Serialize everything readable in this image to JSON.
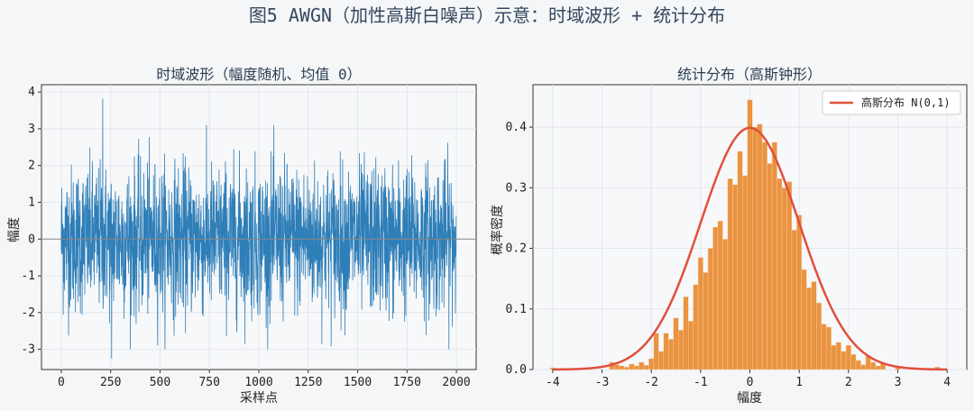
{
  "figure_title": "图5  AWGN（加性高斯白噪声）示意：时域波形 + 统计分布",
  "chart_data": [
    {
      "type": "line",
      "title": "时域波形（幅度随机、均值 0）",
      "xlabel": "采样点",
      "ylabel": "幅度",
      "xlim": [
        -100,
        2100
      ],
      "ylim": [
        -3.55,
        4.2
      ],
      "xticks": [
        0,
        250,
        500,
        750,
        1000,
        1250,
        1500,
        1750,
        2000
      ],
      "yticks": [
        -3,
        -2,
        -1,
        0,
        1,
        2,
        3,
        4
      ],
      "n_samples": 2000,
      "noise_mean": 0,
      "noise_std": 1,
      "notable_points": [
        {
          "x": 210,
          "y": 3.82
        },
        {
          "x": 255,
          "y": -3.25
        }
      ],
      "reference_line_y": 0,
      "line_color": "#2e7eb8",
      "reference_color": "#888888",
      "grid": true
    },
    {
      "type": "bar",
      "title": "统计分布（高斯钟形）",
      "xlabel": "幅度",
      "ylabel": "概率密度",
      "xlim": [
        -4.4,
        4.4
      ],
      "ylim": [
        0,
        0.47
      ],
      "xticks": [
        -4,
        -3,
        -2,
        -1,
        0,
        1,
        2,
        3,
        4
      ],
      "yticks": [
        0.0,
        0.1,
        0.2,
        0.3,
        0.4
      ],
      "bin_width": 0.1,
      "histogram": [
        {
          "x": -4.0,
          "y": 0.003
        },
        {
          "x": -2.8,
          "y": 0.012
        },
        {
          "x": -2.7,
          "y": 0.008
        },
        {
          "x": -2.6,
          "y": 0.006
        },
        {
          "x": -2.5,
          "y": 0.004
        },
        {
          "x": -2.4,
          "y": 0.009
        },
        {
          "x": -2.3,
          "y": 0.006
        },
        {
          "x": -2.2,
          "y": 0.012
        },
        {
          "x": -2.1,
          "y": 0.007
        },
        {
          "x": -2.0,
          "y": 0.018
        },
        {
          "x": -1.9,
          "y": 0.06
        },
        {
          "x": -1.8,
          "y": 0.03
        },
        {
          "x": -1.7,
          "y": 0.06
        },
        {
          "x": -1.6,
          "y": 0.05
        },
        {
          "x": -1.5,
          "y": 0.085
        },
        {
          "x": -1.4,
          "y": 0.065
        },
        {
          "x": -1.3,
          "y": 0.12
        },
        {
          "x": -1.2,
          "y": 0.08
        },
        {
          "x": -1.1,
          "y": 0.14
        },
        {
          "x": -1.0,
          "y": 0.185
        },
        {
          "x": -0.9,
          "y": 0.16
        },
        {
          "x": -0.8,
          "y": 0.2
        },
        {
          "x": -0.7,
          "y": 0.235
        },
        {
          "x": -0.6,
          "y": 0.245
        },
        {
          "x": -0.5,
          "y": 0.215
        },
        {
          "x": -0.4,
          "y": 0.315
        },
        {
          "x": -0.3,
          "y": 0.305
        },
        {
          "x": -0.2,
          "y": 0.36
        },
        {
          "x": -0.1,
          "y": 0.32
        },
        {
          "x": 0.0,
          "y": 0.445
        },
        {
          "x": 0.1,
          "y": 0.4
        },
        {
          "x": 0.2,
          "y": 0.405
        },
        {
          "x": 0.3,
          "y": 0.375
        },
        {
          "x": 0.4,
          "y": 0.34
        },
        {
          "x": 0.5,
          "y": 0.375
        },
        {
          "x": 0.6,
          "y": 0.315
        },
        {
          "x": 0.7,
          "y": 0.3
        },
        {
          "x": 0.8,
          "y": 0.31
        },
        {
          "x": 0.9,
          "y": 0.23
        },
        {
          "x": 1.0,
          "y": 0.255
        },
        {
          "x": 1.1,
          "y": 0.165
        },
        {
          "x": 1.2,
          "y": 0.135
        },
        {
          "x": 1.3,
          "y": 0.145
        },
        {
          "x": 1.4,
          "y": 0.11
        },
        {
          "x": 1.5,
          "y": 0.075
        },
        {
          "x": 1.6,
          "y": 0.07
        },
        {
          "x": 1.7,
          "y": 0.04
        },
        {
          "x": 1.8,
          "y": 0.045
        },
        {
          "x": 1.9,
          "y": 0.03
        },
        {
          "x": 2.0,
          "y": 0.04
        },
        {
          "x": 2.1,
          "y": 0.025
        },
        {
          "x": 2.2,
          "y": 0.015
        },
        {
          "x": 2.3,
          "y": 0.008
        },
        {
          "x": 2.4,
          "y": 0.022
        },
        {
          "x": 2.5,
          "y": 0.012
        },
        {
          "x": 2.6,
          "y": 0.006
        },
        {
          "x": 2.7,
          "y": 0.01
        },
        {
          "x": 3.0,
          "y": 0.003
        },
        {
          "x": 3.8,
          "y": 0.004
        }
      ],
      "bar_color": "#ea9340",
      "curve": {
        "name": "高斯分布 N(0,1)",
        "mean": 0,
        "std": 1,
        "color": "#e0503c"
      },
      "legend_position": "top-right",
      "grid": true
    }
  ]
}
